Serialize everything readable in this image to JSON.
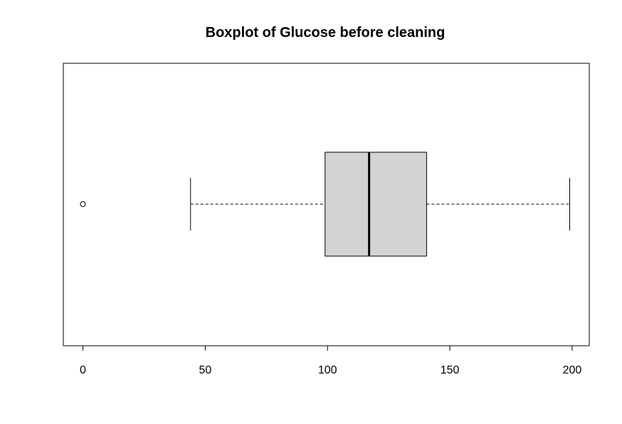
{
  "chart_data": {
    "type": "boxplot",
    "orientation": "horizontal",
    "title": "Boxplot of Glucose before cleaning",
    "xlabel": "",
    "ylabel": "",
    "xlim": [
      -8,
      207
    ],
    "ticks": [
      "0",
      "50",
      "100",
      "150",
      "200"
    ],
    "tick_values": [
      0,
      50,
      100,
      150,
      200
    ],
    "box": {
      "whisker_low": 44,
      "q1": 99,
      "median": 117,
      "q3": 140.5,
      "whisker_high": 199
    },
    "outliers": [
      0
    ],
    "box_fill": "#d3d3d3",
    "line_color": "#000000"
  }
}
